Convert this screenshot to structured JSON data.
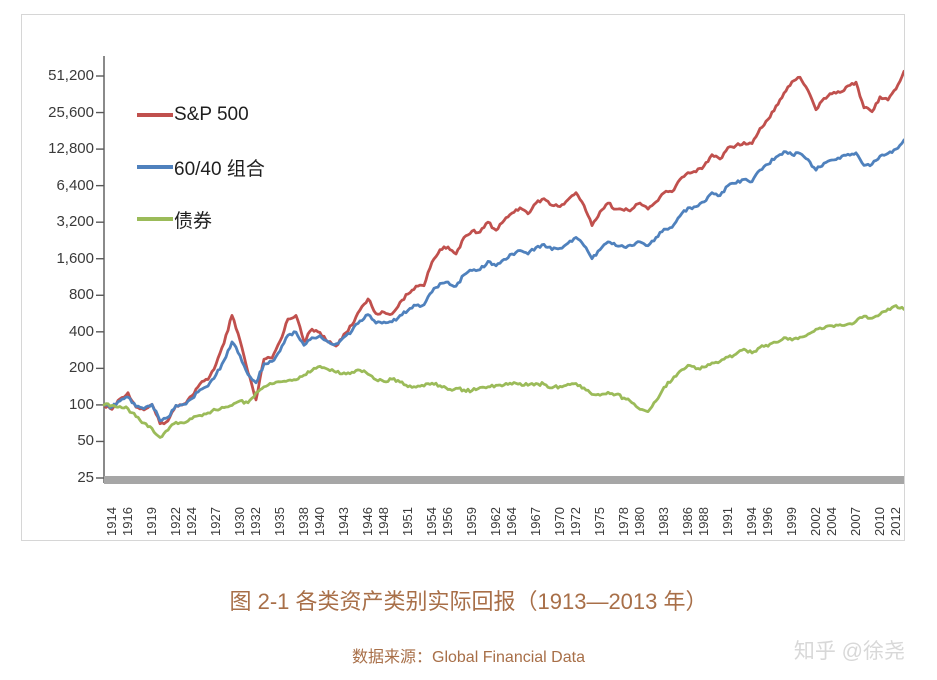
{
  "figure": {
    "title": "图 2-1 各类资产类别实际回报（1913—2013 年）",
    "source": "数据来源：Global Financial Data",
    "watermark": "知乎 @徐尧"
  },
  "colors": {
    "sp500": "#c0504d",
    "portfolio6040": "#4f81bd",
    "bonds": "#9bbb59",
    "axis_line": "#595959",
    "x_axis_bar": "#a6a6a6",
    "frame_border": "#d6d6d6",
    "tick_text": "#3a3a3a",
    "title_text": "#a86f48",
    "watermark_text": "#d8d8d8"
  },
  "chart_data": {
    "type": "line",
    "title": "",
    "xlabel": "",
    "ylabel": "",
    "grid": false,
    "legend_position": "inside-top-left",
    "y_scale": "log2",
    "ylim": [
      25,
      51200
    ],
    "y_ticks": [
      {
        "label": "51,200",
        "value": 51200
      },
      {
        "label": "25,600",
        "value": 25600
      },
      {
        "label": "12,800",
        "value": 12800
      },
      {
        "label": "6,400",
        "value": 6400
      },
      {
        "label": "3,200",
        "value": 3200
      },
      {
        "label": "1,600",
        "value": 1600
      },
      {
        "label": "800",
        "value": 800
      },
      {
        "label": "400",
        "value": 400
      },
      {
        "label": "200",
        "value": 200
      },
      {
        "label": "100",
        "value": 100
      },
      {
        "label": "50",
        "value": 50
      },
      {
        "label": "25",
        "value": 25
      }
    ],
    "x_range": [
      1913,
      2013
    ],
    "x_step": 1,
    "x_tick_years": [
      1914,
      1916,
      1919,
      1922,
      1924,
      1927,
      1930,
      1932,
      1935,
      1938,
      1940,
      1943,
      1946,
      1948,
      1951,
      1954,
      1956,
      1959,
      1962,
      1964,
      1967,
      1970,
      1972,
      1975,
      1978,
      1980,
      1983,
      1986,
      1988,
      1991,
      1994,
      1996,
      1999,
      2002,
      2004,
      2007,
      2010,
      2012
    ],
    "series": [
      {
        "name": "S&P 500",
        "color": "#c0504d",
        "values": [
          100,
          92,
          112,
          126,
          96,
          91,
          101,
          70,
          74,
          99,
          102,
          119,
          149,
          162,
          216,
          322,
          545,
          340,
          185,
          110,
          238,
          243,
          335,
          510,
          545,
          333,
          420,
          395,
          330,
          305,
          383,
          455,
          605,
          745,
          565,
          580,
          562,
          700,
          820,
          950,
          960,
          1500,
          1900,
          2000,
          1750,
          2400,
          2700,
          2650,
          3200,
          2750,
          3300,
          3800,
          4200,
          3750,
          4600,
          5000,
          4400,
          4300,
          4900,
          5600,
          4400,
          3000,
          3900,
          4600,
          4100,
          4000,
          4100,
          4600,
          4100,
          4700,
          5600,
          5700,
          7200,
          8200,
          8300,
          9300,
          11500,
          10600,
          13200,
          13700,
          14500,
          14200,
          18900,
          22500,
          29000,
          37000,
          46000,
          50000,
          39000,
          27000,
          33500,
          36500,
          37500,
          42500,
          45500,
          28000,
          26000,
          34500,
          32500,
          40000,
          56000
        ]
      },
      {
        "name": "60/40 组合",
        "color": "#4f81bd",
        "values": [
          100,
          96,
          108,
          116,
          97,
          93,
          101,
          74,
          79,
          99,
          101,
          113,
          133,
          143,
          177,
          232,
          330,
          255,
          178,
          152,
          218,
          228,
          278,
          375,
          398,
          310,
          358,
          372,
          332,
          318,
          362,
          408,
          492,
          555,
          472,
          482,
          483,
          545,
          600,
          660,
          668,
          852,
          1000,
          1030,
          950,
          1180,
          1280,
          1300,
          1520,
          1400,
          1580,
          1750,
          1870,
          1750,
          1980,
          2100,
          1900,
          1950,
          2150,
          2400,
          2050,
          1600,
          1900,
          2200,
          2050,
          2000,
          2050,
          2200,
          2050,
          2400,
          2800,
          2900,
          3600,
          4200,
          4300,
          4700,
          5600,
          5300,
          6400,
          6700,
          7200,
          6900,
          8600,
          9600,
          11000,
          12200,
          11500,
          11800,
          10500,
          8600,
          9800,
          10400,
          10700,
          11600,
          11900,
          9400,
          9600,
          11200,
          11800,
          12800,
          15200
        ]
      },
      {
        "name": "债券",
        "color": "#9bbb59",
        "values": [
          100,
          99,
          97,
          93,
          80,
          71,
          64,
          54,
          62,
          72,
          71,
          77,
          82,
          86,
          91,
          95,
          99,
          108,
          104,
          126,
          141,
          149,
          155,
          159,
          161,
          176,
          192,
          208,
          196,
          186,
          184,
          186,
          193,
          179,
          161,
          156,
          163,
          154,
          141,
          140,
          143,
          151,
          144,
          134,
          137,
          133,
          131,
          139,
          141,
          145,
          146,
          148,
          150,
          145,
          150,
          148,
          138,
          142,
          148,
          150,
          138,
          122,
          120,
          127,
          122,
          114,
          104,
          92,
          88,
          108,
          140,
          160,
          190,
          212,
          198,
          205,
          222,
          228,
          248,
          262,
          288,
          268,
          298,
          304,
          328,
          358,
          342,
          362,
          382,
          420,
          428,
          448,
          458,
          464,
          488,
          538,
          518,
          558,
          618,
          658,
          612
        ]
      }
    ]
  }
}
